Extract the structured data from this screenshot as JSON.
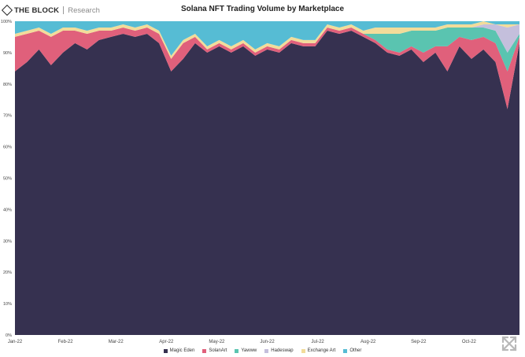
{
  "header": {
    "logo_brand": "THE BLOCK",
    "logo_sub": "Research",
    "title": "Solana NFT Trading Volume by Marketplace"
  },
  "chart_data": {
    "type": "area",
    "stacked": true,
    "normalized": true,
    "title": "Solana NFT Trading Volume by Marketplace",
    "xlabel": "",
    "ylabel": "",
    "ylim": [
      0,
      100
    ],
    "y_ticks": [
      "0%",
      "10%",
      "20%",
      "30%",
      "40%",
      "50%",
      "60%",
      "70%",
      "80%",
      "90%",
      "100%"
    ],
    "x_ticks": [
      "Jan-22",
      "Feb-22",
      "Mar-22",
      "Apr-22",
      "May-22",
      "Jun-22",
      "Jul-22",
      "Aug-22",
      "Sep-22",
      "Oct-22"
    ],
    "legend_position": "bottom",
    "x": [
      "Jan-01",
      "Jan-08",
      "Jan-15",
      "Jan-22",
      "Jan-29",
      "Feb-05",
      "Feb-12",
      "Feb-19",
      "Feb-26",
      "Mar-05",
      "Mar-12",
      "Mar-19",
      "Mar-26",
      "Apr-02",
      "Apr-09",
      "Apr-16",
      "Apr-23",
      "Apr-30",
      "May-07",
      "May-14",
      "May-21",
      "May-28",
      "Jun-04",
      "Jun-11",
      "Jun-18",
      "Jun-25",
      "Jul-02",
      "Jul-09",
      "Jul-16",
      "Jul-23",
      "Jul-30",
      "Aug-06",
      "Aug-13",
      "Aug-20",
      "Aug-27",
      "Sep-03",
      "Sep-10",
      "Sep-17",
      "Sep-24",
      "Oct-01",
      "Oct-08",
      "Oct-15",
      "Oct-22"
    ],
    "series": [
      {
        "name": "Magic Eden",
        "color": "#363150",
        "values": [
          84,
          87,
          91,
          86,
          90,
          93,
          91,
          94,
          95,
          96,
          95,
          96,
          93,
          84,
          88,
          93,
          90,
          92,
          90,
          92,
          89,
          91,
          90,
          93,
          92,
          92,
          97,
          96,
          97,
          95,
          93,
          90,
          89,
          91,
          87,
          90,
          84,
          92,
          88,
          91,
          87,
          72,
          93
        ]
      },
      {
        "name": "SolanArt",
        "color": "#e0607b",
        "values": [
          11,
          9,
          6,
          9,
          7,
          4,
          5,
          3,
          2,
          2,
          2,
          2,
          3,
          4,
          5,
          2,
          1,
          1,
          1,
          1,
          1,
          1,
          1,
          1,
          1,
          1,
          1,
          1,
          1,
          1,
          1,
          1,
          1,
          1,
          3,
          2,
          8,
          3,
          6,
          4,
          6,
          12,
          2
        ]
      },
      {
        "name": "Yawww",
        "color": "#5ac4b0",
        "values": [
          0,
          0,
          0,
          0,
          0,
          0,
          0,
          0,
          0,
          0,
          0,
          0,
          0,
          0,
          0,
          0,
          0,
          0,
          0,
          0,
          0,
          0,
          0,
          0,
          0,
          0,
          0,
          0,
          0,
          0,
          2,
          5,
          6,
          5,
          7,
          5,
          6,
          3,
          4,
          3,
          4,
          6,
          1
        ]
      },
      {
        "name": "Hadeswap",
        "color": "#c4bfdc",
        "values": [
          0,
          0,
          0,
          0,
          0,
          0,
          0,
          0,
          0,
          0,
          0,
          0,
          0,
          0,
          0,
          0,
          0,
          0,
          0,
          0,
          0,
          0,
          0,
          0,
          0,
          0,
          0,
          0,
          0,
          0,
          0,
          0,
          0,
          0,
          0,
          0,
          0,
          0,
          0,
          1,
          2,
          8,
          3
        ]
      },
      {
        "name": "Exchange Art",
        "color": "#f2dc9a",
        "values": [
          1,
          1,
          1,
          1,
          1,
          1,
          1,
          1,
          1,
          1,
          1,
          1,
          1,
          1,
          1,
          1,
          1,
          1,
          1,
          1,
          1,
          1,
          1,
          1,
          1,
          1,
          1,
          1,
          1,
          1,
          2,
          2,
          2,
          1,
          1,
          1,
          1,
          1,
          1,
          1,
          0,
          1,
          0
        ]
      },
      {
        "name": "Other",
        "color": "#56bcd4",
        "values": [
          4,
          3,
          2,
          4,
          2,
          2,
          3,
          2,
          2,
          1,
          2,
          1,
          3,
          11,
          6,
          4,
          8,
          6,
          8,
          6,
          9,
          7,
          8,
          5,
          6,
          6,
          1,
          2,
          1,
          3,
          2,
          2,
          2,
          2,
          2,
          2,
          1,
          1,
          1,
          0,
          1,
          1,
          1
        ]
      }
    ]
  }
}
